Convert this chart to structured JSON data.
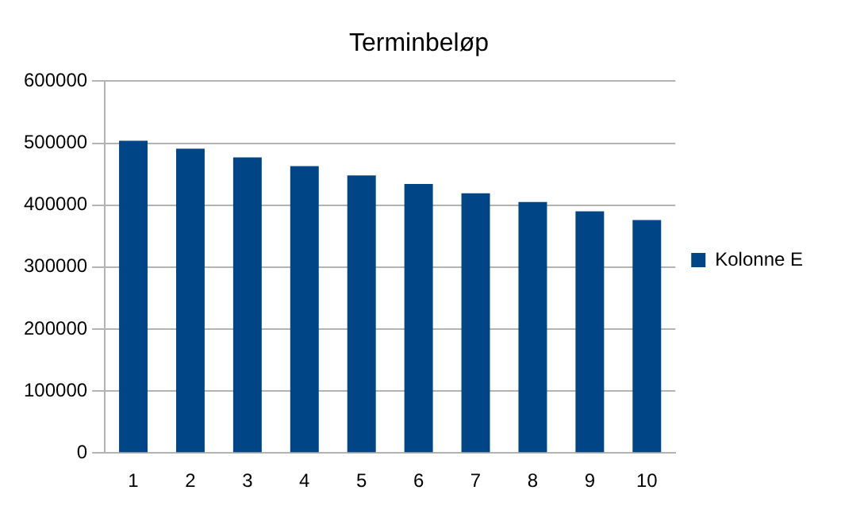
{
  "chart_data": {
    "type": "bar",
    "title": "Terminbeløp",
    "categories": [
      "1",
      "2",
      "3",
      "4",
      "5",
      "6",
      "7",
      "8",
      "9",
      "10"
    ],
    "series": [
      {
        "name": "Kolonne E",
        "color": "#004586",
        "values": [
          504000,
          491000,
          477000,
          463000,
          448000,
          434000,
          419000,
          405000,
          390000,
          376000
        ]
      }
    ],
    "ylim": [
      0,
      600000
    ],
    "yticks": [
      0,
      100000,
      200000,
      300000,
      400000,
      500000,
      600000
    ],
    "grid": "y",
    "legend": "right"
  }
}
